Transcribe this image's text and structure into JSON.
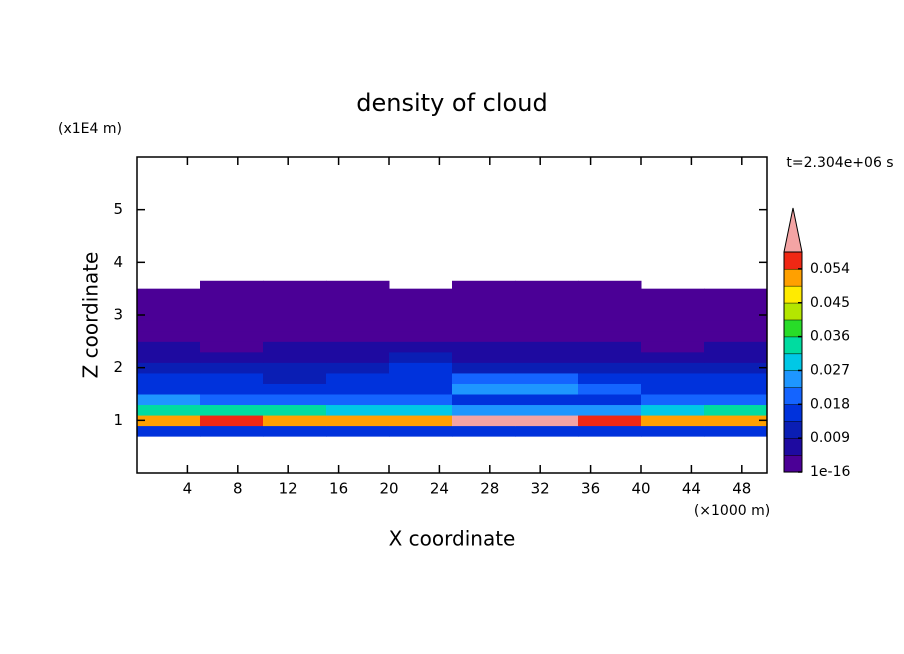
{
  "chart_data": {
    "type": "contour",
    "title": "density of cloud",
    "x_label": "X coordinate",
    "y_label": "Z coordinate",
    "x_unit": "(×1000 m)",
    "y_unit": "(x1E4 m)",
    "time_label": "t=2.304e+06 s",
    "xlim": [
      0,
      50
    ],
    "xticks": [
      4,
      8,
      12,
      16,
      20,
      24,
      28,
      32,
      36,
      40,
      44,
      48
    ],
    "ylim": [
      0,
      6
    ],
    "yticks": [
      1,
      2,
      3,
      4,
      5
    ],
    "x_edges": [
      0,
      5,
      10,
      15,
      20,
      25,
      30,
      35,
      40,
      45,
      50
    ],
    "z_edges": [
      0.7,
      0.9,
      1.1,
      1.3,
      1.5,
      1.7,
      1.9,
      2.1,
      2.3,
      2.5,
      2.7,
      2.9,
      3.1,
      3.3,
      3.5,
      3.65
    ],
    "z": [
      [
        0.016,
        0.018,
        0.017,
        0.016,
        0.017,
        0.018,
        0.017,
        0.016,
        0.017,
        0.018
      ],
      [
        0.052,
        0.055,
        0.054,
        0.05,
        0.053,
        0.06,
        0.061,
        0.056,
        0.054,
        0.052
      ],
      [
        0.034,
        0.036,
        0.032,
        0.03,
        0.028,
        0.026,
        0.024,
        0.027,
        0.03,
        0.032
      ],
      [
        0.024,
        0.022,
        0.02,
        0.021,
        0.019,
        0.017,
        0.016,
        0.018,
        0.02,
        0.022
      ],
      [
        0.017,
        0.016,
        0.015,
        0.016,
        0.018,
        0.024,
        0.025,
        0.02,
        0.017,
        0.016
      ],
      [
        0.015,
        0.014,
        0.013,
        0.014,
        0.016,
        0.02,
        0.019,
        0.015,
        0.014,
        0.015
      ],
      [
        0.012,
        0.011,
        0.012,
        0.013,
        0.014,
        0.013,
        0.012,
        0.012,
        0.011,
        0.012
      ],
      [
        0.007,
        0.006,
        0.008,
        0.009,
        0.01,
        0.009,
        0.008,
        0.007,
        0.006,
        0.007
      ],
      [
        0.005,
        0.004,
        0.005,
        0.005,
        0.006,
        0.006,
        0.005,
        0.005,
        0.004,
        0.005
      ],
      [
        0.002,
        0.002,
        0.002,
        0.002,
        0.002,
        0.002,
        0.002,
        0.002,
        0.002,
        0.002
      ],
      [
        0.002,
        0.002,
        0.002,
        0.002,
        0.002,
        0.002,
        0.002,
        0.002,
        0.002,
        0.002
      ],
      [
        0.001,
        0.001,
        0.001,
        0.001,
        0.001,
        0.001,
        0.001,
        0.001,
        0.001,
        0.001
      ],
      [
        0.001,
        0.001,
        0.001,
        0.001,
        0.001,
        0.001,
        0.001,
        0.001,
        0.001,
        0.001
      ],
      [
        0.001,
        0.001,
        0.001,
        0.001,
        0.001,
        0.001,
        0.001,
        0.001,
        0.001,
        0.001
      ],
      [
        null,
        0.001,
        0.001,
        0.001,
        null,
        0.001,
        0.001,
        0.001,
        null,
        null
      ]
    ],
    "colorbar": {
      "lim": [
        1e-16,
        0.0585
      ],
      "ticks": [
        1e-16,
        0.009,
        0.018,
        0.027,
        0.036,
        0.045,
        0.054
      ],
      "colors": [
        "#4b0096",
        "#1e0aa0",
        "#0a1eb4",
        "#0032dc",
        "#1464ff",
        "#1e96ff",
        "#00c8e6",
        "#00dca0",
        "#28dc28",
        "#b4e600",
        "#ffeb00",
        "#ffa000",
        "#f02814"
      ],
      "over_color": "#f4a4a4"
    }
  }
}
